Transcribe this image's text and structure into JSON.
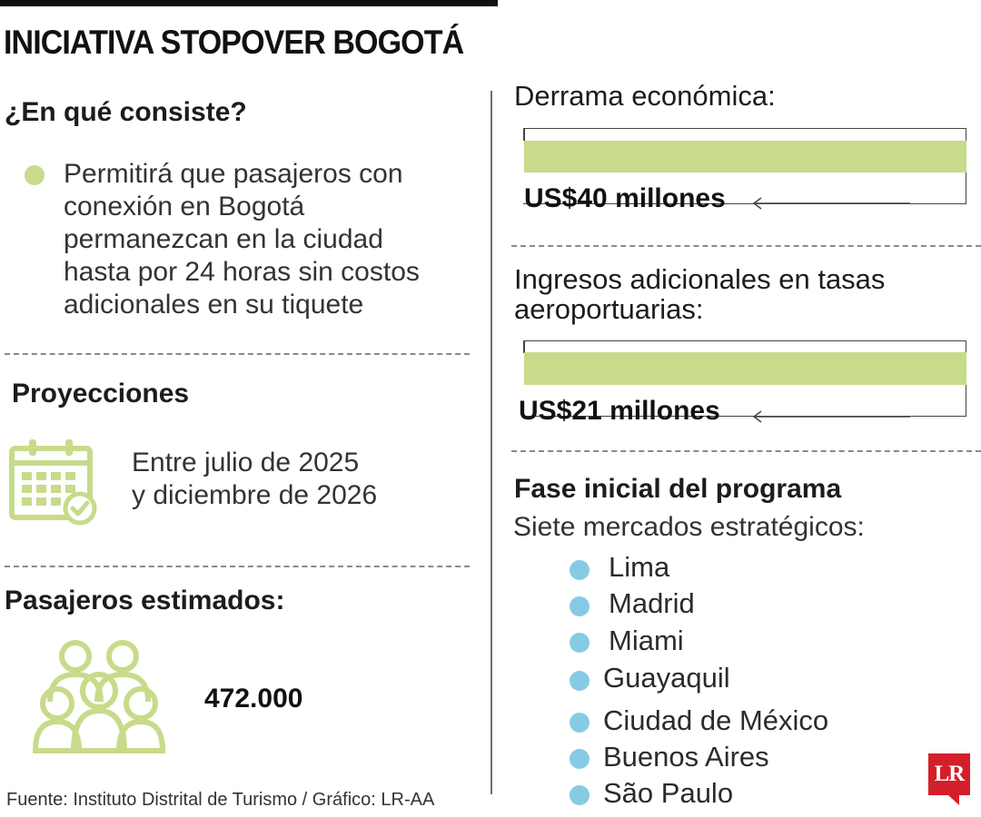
{
  "title": "INICIATIVA STOPOVER BOGOTÁ",
  "consiste": {
    "heading": "¿En qué consiste?",
    "lines": [
      "Permitirá que pasajeros con",
      "conexión en Bogotá",
      "permanezcan en la ciudad",
      "hasta por 24 horas sin costos",
      "adicionales en su tiquete"
    ]
  },
  "proyecciones": {
    "heading": "Proyecciones",
    "lines": [
      "Entre julio de 2025",
      "y diciembre de 2026"
    ],
    "icon": "calendar-check-icon"
  },
  "pasajeros": {
    "heading": "Pasajeros estimados:",
    "value": "472.000",
    "icon": "people-group-icon"
  },
  "derrama": {
    "heading": "Derrama económica:",
    "value_label": "US$40 millones"
  },
  "ingresos": {
    "heading_lines": [
      "Ingresos adicionales en tasas",
      "aeroportuarias:"
    ],
    "value_label": "US$21 millones"
  },
  "fase": {
    "heading": "Fase inicial del programa",
    "subheading": "Siete mercados estratégicos:",
    "markets": [
      "Lima",
      "Madrid",
      "Miami",
      "Guayaquil",
      "Ciudad de México",
      "Buenos Aires",
      "São Paulo"
    ]
  },
  "source": "Fuente: Instituto Distrital de Turismo / Gráfico: LR-AA",
  "logo_text": "LR",
  "colors": {
    "accent_green": "#c7db8a",
    "accent_blue": "#86cbe4",
    "logo_red": "#d41f2a"
  }
}
